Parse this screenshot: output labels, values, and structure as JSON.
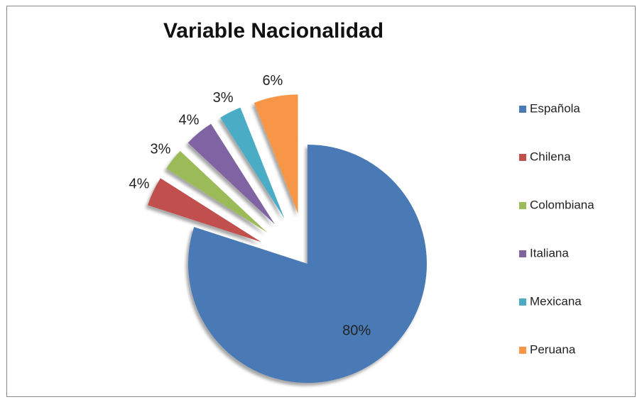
{
  "chart_data": {
    "type": "pie",
    "title": "Variable Nacionalidad",
    "categories": [
      "Española",
      "Chilena",
      "Colombiana",
      "Italiana",
      "Mexicana",
      "Peruana"
    ],
    "values": [
      80,
      4,
      3,
      4,
      3,
      6
    ],
    "value_labels": [
      "80%",
      "4%",
      "3%",
      "4%",
      "3%",
      "6%"
    ],
    "colors": [
      "#4a7ab5",
      "#c0504d",
      "#9bbb59",
      "#8064a2",
      "#4bacc6",
      "#f79646"
    ],
    "legend": "right"
  }
}
